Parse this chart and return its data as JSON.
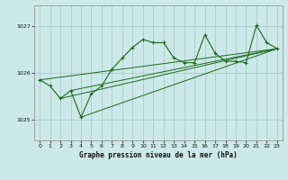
{
  "title": "Graphe pression niveau de la mer (hPa)",
  "bg_color": "#cce8e8",
  "grid_color": "#aacccc",
  "line_color": "#1a6b1a",
  "marker_color": "#1a6b1a",
  "xlim": [
    -0.5,
    23.5
  ],
  "ylim": [
    1024.55,
    1027.45
  ],
  "yticks": [
    1025,
    1026,
    1027
  ],
  "xticks": [
    0,
    1,
    2,
    3,
    4,
    5,
    6,
    7,
    8,
    9,
    10,
    11,
    12,
    13,
    14,
    15,
    16,
    17,
    18,
    19,
    20,
    21,
    22,
    23
  ],
  "main_data": [
    1025.85,
    1025.72,
    1025.45,
    1025.62,
    1025.05,
    1025.55,
    1025.72,
    1026.08,
    1026.32,
    1026.55,
    1026.72,
    1026.65,
    1026.65,
    1026.32,
    1026.22,
    1026.22,
    1026.82,
    1026.42,
    1026.25,
    1026.25,
    1026.22,
    1027.02,
    1026.65,
    1026.52
  ],
  "trend_lines": [
    [
      0,
      1025.85,
      23,
      1026.52
    ],
    [
      2,
      1025.45,
      23,
      1026.52
    ],
    [
      3,
      1025.62,
      23,
      1026.52
    ],
    [
      4,
      1025.05,
      23,
      1026.52
    ]
  ]
}
